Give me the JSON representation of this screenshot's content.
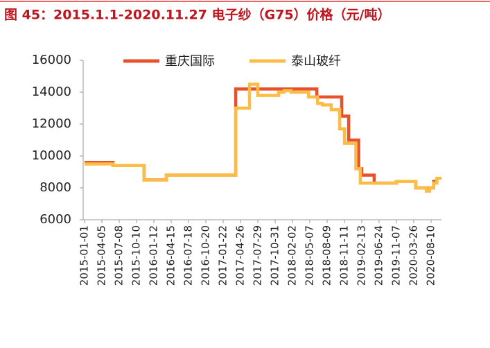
{
  "chart_data": {
    "type": "line",
    "title": "图 45：2015.1.1-2020.11.27 电子纱（G75）价格（元/吨）",
    "xlim": [
      "2015-01-01",
      "2020-11-27"
    ],
    "xticks": [
      "2015-01-01",
      "2015-04-05",
      "2015-07-08",
      "2015-10-10",
      "2016-01-12",
      "2016-04-15",
      "2016-07-18",
      "2016-10-20",
      "2017-01-22",
      "2017-04-26",
      "2017-07-29",
      "2017-10-31",
      "2018-02-02",
      "2018-05-07",
      "2018-08-09",
      "2018-11-11",
      "2019-02-13",
      "2019-06-24",
      "2019-11-07",
      "2020-03-26",
      "2020-08-10"
    ],
    "ylim": [
      6000,
      16000
    ],
    "yticks": [
      6000,
      8000,
      10000,
      12000,
      14000,
      16000
    ],
    "legend": "top",
    "series": [
      {
        "name": "重庆国际",
        "color": "#e6532a",
        "x": [
          "2015-01-01",
          "2015-06-04",
          "2015-06-04",
          "2015-11-20",
          "2015-11-20",
          "2016-03-20",
          "2016-03-20",
          "2017-03-31",
          "2017-03-31",
          "2018-06-14",
          "2018-06-14",
          "2018-10-27",
          "2018-10-27",
          "2018-12-04",
          "2018-12-04",
          "2019-01-27",
          "2019-01-27",
          "2019-02-13",
          "2019-02-13",
          "2019-05-18",
          "2019-05-18",
          "2019-11-07",
          "2019-11-07",
          "2020-04-11",
          "2020-04-11",
          "2020-09-06",
          "2020-09-06",
          "2020-10-09",
          "2020-10-09",
          "2020-11-27"
        ],
        "values": [
          9600,
          9600,
          9400,
          9400,
          8500,
          8500,
          8800,
          8800,
          14200,
          14200,
          13700,
          13700,
          12500,
          12500,
          11000,
          11000,
          9200,
          9200,
          8800,
          8800,
          8300,
          8300,
          8400,
          8400,
          8000,
          8000,
          8400,
          8400,
          8600,
          8600
        ]
      },
      {
        "name": "泰山玻纤",
        "color": "#fbbd45",
        "x": [
          "2015-01-01",
          "2015-06-04",
          "2015-06-04",
          "2015-11-20",
          "2015-11-20",
          "2016-03-20",
          "2016-03-20",
          "2017-03-31",
          "2017-03-31",
          "2017-06-14",
          "2017-06-14",
          "2017-07-29",
          "2017-07-29",
          "2017-11-19",
          "2017-11-19",
          "2017-12-19",
          "2017-12-19",
          "2018-01-25",
          "2018-01-25",
          "2018-04-30",
          "2018-04-30",
          "2018-06-18",
          "2018-06-18",
          "2018-07-14",
          "2018-07-14",
          "2018-08-31",
          "2018-08-31",
          "2018-10-16",
          "2018-10-16",
          "2018-11-11",
          "2018-11-11",
          "2019-01-12",
          "2019-01-12",
          "2019-02-05",
          "2019-02-05",
          "2019-11-07",
          "2019-11-07",
          "2020-04-11",
          "2020-04-11",
          "2020-07-03",
          "2020-07-03",
          "2020-07-30",
          "2020-07-30",
          "2020-09-06",
          "2020-09-06",
          "2020-10-09",
          "2020-10-09",
          "2020-11-27"
        ],
        "values": [
          9500,
          9500,
          9400,
          9400,
          8500,
          8500,
          8800,
          8800,
          13000,
          13000,
          14500,
          14500,
          13800,
          13800,
          14000,
          14000,
          14100,
          14100,
          14000,
          14000,
          13700,
          13700,
          13300,
          13300,
          13200,
          13200,
          12900,
          12900,
          11700,
          11700,
          10800,
          10800,
          9200,
          9200,
          8300,
          8300,
          8400,
          8400,
          8000,
          8000,
          7800,
          7800,
          8000,
          8000,
          8300,
          8300,
          8600,
          8600
        ]
      }
    ]
  }
}
